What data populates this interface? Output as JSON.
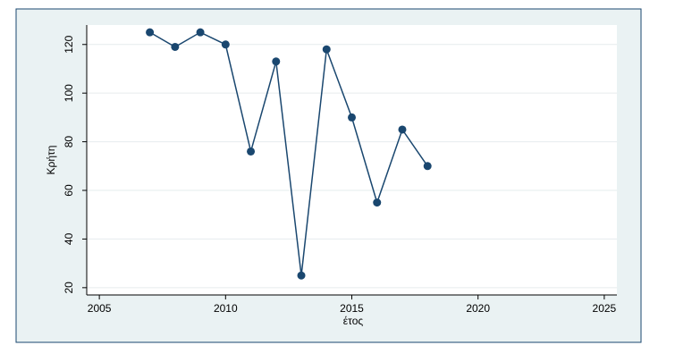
{
  "chart_data": {
    "type": "line",
    "x_label": "έτος",
    "y_label": "Κρήτη",
    "series": [
      {
        "name": "Κρήτη",
        "color": "#1a476f",
        "x": [
          2007,
          2008,
          2009,
          2010,
          2011,
          2012,
          2013,
          2014,
          2015,
          2016,
          2017,
          2018
        ],
        "values": [
          125,
          119,
          125,
          120,
          76,
          113,
          25,
          118,
          90,
          55,
          85,
          70
        ]
      }
    ],
    "xlim": [
      2004.5,
      2025.5
    ],
    "xticks": [
      2005,
      2010,
      2015,
      2020,
      2025
    ],
    "ylim": [
      17,
      128
    ],
    "yticks": [
      20,
      40,
      60,
      80,
      100,
      120
    ],
    "grid": true
  }
}
